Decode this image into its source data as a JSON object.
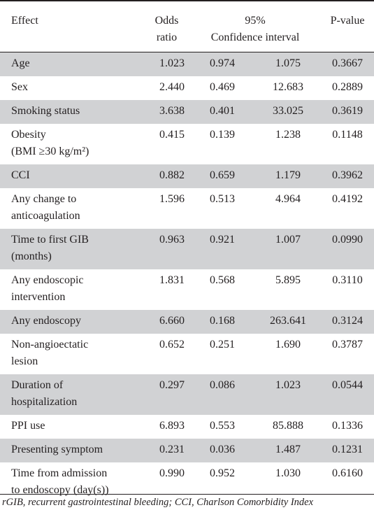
{
  "header": {
    "effect": "Effect",
    "odds_ratio_line1": "Odds",
    "odds_ratio_line2": "ratio",
    "ci_line1": "95%",
    "ci_line2": "Confidence interval",
    "p_value": "P-value"
  },
  "rows": [
    {
      "effect": [
        "Age"
      ],
      "or": "1.023",
      "lo": "0.974",
      "hi": "1.075",
      "p": "0.3667",
      "shaded": true
    },
    {
      "effect": [
        "Sex"
      ],
      "or": "2.440",
      "lo": "0.469",
      "hi": "12.683",
      "p": "0.2889",
      "shaded": false
    },
    {
      "effect": [
        "Smoking status"
      ],
      "or": "3.638",
      "lo": "0.401",
      "hi": "33.025",
      "p": "0.3619",
      "shaded": true
    },
    {
      "effect": [
        "Obesity",
        "(BMI ≥30 kg/m²)"
      ],
      "or": "0.415",
      "lo": "0.139",
      "hi": "1.238",
      "p": "0.1148",
      "shaded": false
    },
    {
      "effect": [
        "CCI"
      ],
      "or": "0.882",
      "lo": "0.659",
      "hi": "1.179",
      "p": "0.3962",
      "shaded": true
    },
    {
      "effect": [
        "Any change to",
        "anticoagulation"
      ],
      "or": "1.596",
      "lo": "0.513",
      "hi": "4.964",
      "p": "0.4192",
      "shaded": false
    },
    {
      "effect": [
        "Time to first GIB",
        "(months)"
      ],
      "or": "0.963",
      "lo": "0.921",
      "hi": "1.007",
      "p": "0.0990",
      "shaded": true
    },
    {
      "effect": [
        "Any endoscopic",
        "intervention"
      ],
      "or": "1.831",
      "lo": "0.568",
      "hi": "5.895",
      "p": "0.3110",
      "shaded": false
    },
    {
      "effect": [
        "Any endoscopy"
      ],
      "or": "6.660",
      "lo": "0.168",
      "hi": "263.641",
      "p": "0.3124",
      "shaded": true
    },
    {
      "effect": [
        "Non-angioectatic",
        "lesion"
      ],
      "or": "0.652",
      "lo": "0.251",
      "hi": "1.690",
      "p": "0.3787",
      "shaded": false
    },
    {
      "effect": [
        "Duration of",
        "hospitalization"
      ],
      "or": "0.297",
      "lo": "0.086",
      "hi": "1.023",
      "p": "0.0544",
      "shaded": true
    },
    {
      "effect": [
        "PPI use"
      ],
      "or": "6.893",
      "lo": "0.553",
      "hi": "85.888",
      "p": "0.1336",
      "shaded": false
    },
    {
      "effect": [
        "Presenting symptom"
      ],
      "or": "0.231",
      "lo": "0.036",
      "hi": "1.487",
      "p": "0.1231",
      "shaded": true
    },
    {
      "effect": [
        "Time from admission",
        "to endoscopy (day(s))"
      ],
      "or": "0.990",
      "lo": "0.952",
      "hi": "1.030",
      "p": "0.6160",
      "shaded": false
    }
  ],
  "footnote": "rGIB, recurrent gastrointestinal bleeding; CCI, Charlson Comorbidity Index"
}
